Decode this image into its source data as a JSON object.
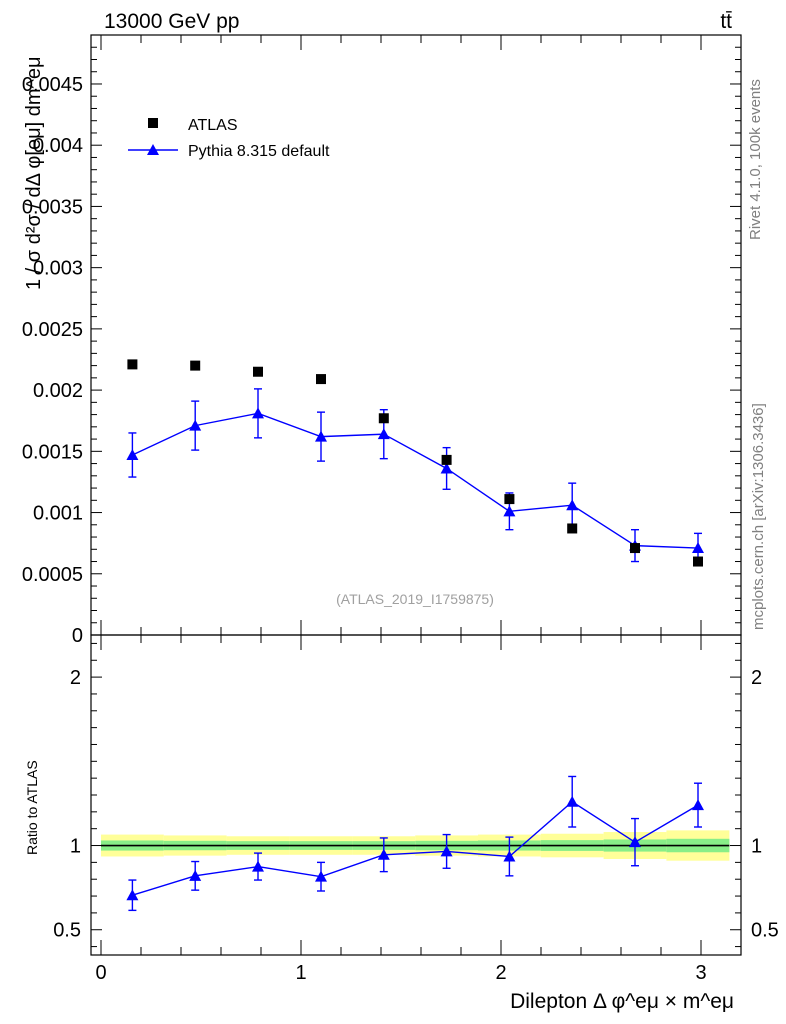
{
  "header": {
    "left_title": "13000 GeV pp",
    "right_title": "tt̄"
  },
  "side_labels": {
    "rivet": "Rivet 4.1.0,  100k events",
    "mcplots": "mcplots.cern.ch [arXiv:1306.3436]"
  },
  "watermark": "(ATLAS_2019_I1759875)",
  "colors": {
    "data": "#000000",
    "mc": "#0000ff",
    "band_outer": "#ffff99",
    "band_inner": "#88ee88",
    "ref_line": "#2e7d32"
  },
  "chart_data": [
    {
      "type": "scatter",
      "panel": "main",
      "ylabel": "1 / σ  d²σ / dΔ φ[eμ] dm^eμ",
      "xlim": [
        -0.05,
        3.2
      ],
      "ylim": [
        0,
        0.0049
      ],
      "yticks": [
        0,
        0.0005,
        0.001,
        0.0015,
        0.002,
        0.0025,
        0.003,
        0.0035,
        0.004,
        0.0045
      ],
      "ytick_labels": [
        "0",
        "0.0005",
        "0.001",
        "0.0015",
        "0.002",
        "0.0025",
        "0.003",
        "0.0035",
        "0.004",
        "0.0045"
      ],
      "x": [
        0.157,
        0.471,
        0.785,
        1.1,
        1.414,
        1.728,
        2.042,
        2.356,
        2.67,
        2.985
      ],
      "series": [
        {
          "name": "ATLAS",
          "marker": "square",
          "values": [
            0.00221,
            0.0022,
            0.00215,
            0.00209,
            0.00177,
            0.00143,
            0.00111,
            0.00087,
            0.00071,
            0.0006
          ],
          "errors": [
            3e-05,
            3e-05,
            3e-05,
            3e-05,
            4e-05,
            4e-05,
            4e-05,
            3e-05,
            2e-05,
            2e-05
          ]
        },
        {
          "name": "Pythia 8.315 default",
          "marker": "triangle",
          "values": [
            0.00147,
            0.00171,
            0.00181,
            0.00162,
            0.00164,
            0.00136,
            0.00101,
            0.00106,
            0.00073,
            0.00071
          ],
          "errors": [
            0.00018,
            0.0002,
            0.0002,
            0.0002,
            0.0002,
            0.00017,
            0.00015,
            0.00018,
            0.00013,
            0.00012
          ]
        }
      ]
    },
    {
      "type": "scatter",
      "panel": "ratio",
      "ylabel": "Ratio to ATLAS",
      "xlabel": "Dilepton Δ φ^eμ × m^eμ",
      "xlim": [
        -0.05,
        3.2
      ],
      "ylim": [
        0.35,
        2.25
      ],
      "yticks": [
        0.5,
        1,
        2
      ],
      "ytick_labels": [
        "0.5",
        "1",
        "2"
      ],
      "xticks": [
        0,
        1,
        2,
        3
      ],
      "xtick_labels": [
        "0",
        "1",
        "2",
        "3"
      ],
      "x": [
        0.157,
        0.471,
        0.785,
        1.1,
        1.414,
        1.728,
        2.042,
        2.356,
        2.67,
        2.985
      ],
      "bin_edges": [
        0,
        0.314,
        0.628,
        0.942,
        1.257,
        1.571,
        1.885,
        2.199,
        2.513,
        2.827,
        3.142
      ],
      "band_outer": [
        0.065,
        0.06,
        0.055,
        0.055,
        0.055,
        0.06,
        0.065,
        0.07,
        0.08,
        0.09
      ],
      "band_inner": [
        0.03,
        0.028,
        0.026,
        0.026,
        0.026,
        0.028,
        0.03,
        0.032,
        0.036,
        0.04
      ],
      "series": [
        {
          "name": "Pythia 8.315 default / ATLAS",
          "marker": "triangle",
          "values": [
            0.705,
            0.82,
            0.875,
            0.815,
            0.945,
            0.965,
            0.935,
            1.26,
            1.02,
            1.24
          ],
          "errors": [
            0.09,
            0.085,
            0.08,
            0.085,
            0.1,
            0.1,
            0.115,
            0.15,
            0.14,
            0.13
          ]
        }
      ]
    }
  ]
}
